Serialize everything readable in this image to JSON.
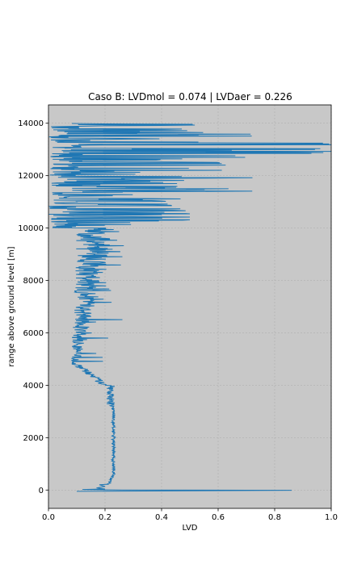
{
  "chart_data": {
    "type": "line",
    "title": "Caso B: LVDmol = 0.074 | LVDaer = 0.226",
    "xlabel": "LVD",
    "ylabel": "range above ground level [m]",
    "xlim": [
      0.0,
      1.0
    ],
    "ylim": [
      -700,
      14700
    ],
    "xticks": [
      0.0,
      0.2,
      0.4,
      0.6,
      0.8,
      1.0
    ],
    "xtick_labels": [
      "0.0",
      "0.2",
      "0.4",
      "0.6",
      "0.8",
      "1.0"
    ],
    "yticks": [
      0,
      2000,
      4000,
      6000,
      8000,
      10000,
      12000,
      14000
    ],
    "ytick_labels": [
      "0",
      "2000",
      "4000",
      "6000",
      "8000",
      "10000",
      "12000",
      "14000"
    ],
    "grid": true,
    "plot_background": "#c8c8c8",
    "line_color": "#1f77b4",
    "series": [
      {
        "values_range_m": [
          0,
          600,
          1200,
          1800,
          2400,
          3000,
          3500,
          3800,
          4000,
          4200,
          4400,
          4500,
          4600,
          4800,
          5000,
          5500,
          6000,
          6500,
          7000,
          7500,
          8000,
          8500,
          9000,
          9500,
          10000,
          10300,
          10600,
          10800,
          11000,
          11200,
          11400,
          11700,
          12000,
          12300,
          12600,
          12900,
          13200,
          13500,
          13800,
          14000
        ],
        "values_lvd": [
          0.86,
          0.23,
          0.235,
          0.235,
          0.23,
          0.23,
          0.22,
          0.22,
          0.2,
          0.15,
          0.11,
          0.1,
          0.09,
          0.09,
          0.08,
          0.08,
          0.08,
          0.09,
          0.1,
          0.09,
          0.1,
          0.12,
          0.15,
          0.2,
          0.26,
          0.5,
          0.5,
          0.45,
          0.4,
          0.55,
          0.73,
          0.45,
          0.82,
          0.65,
          0.58,
          1.0,
          1.0,
          0.78,
          0.55,
          0.5
        ]
      }
    ]
  }
}
